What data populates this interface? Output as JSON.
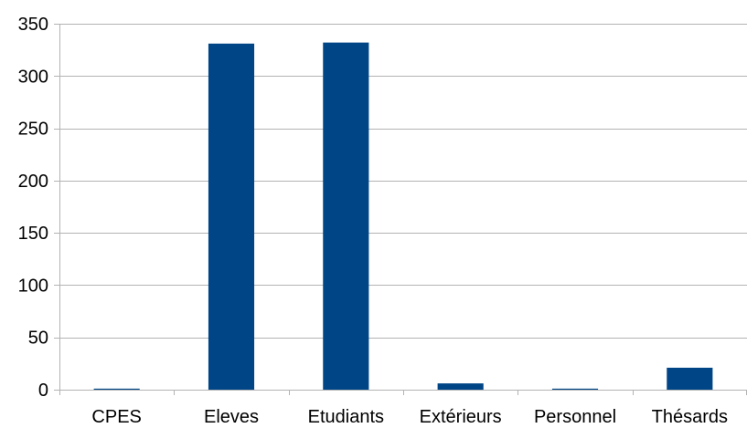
{
  "chart_data": {
    "type": "bar",
    "title": "",
    "xlabel": "",
    "ylabel": "",
    "categories": [
      "CPES",
      "Eleves",
      "Etudiants",
      "Extérieurs",
      "Personnel",
      "Thésards"
    ],
    "values": [
      1,
      331,
      332,
      6,
      1,
      21
    ],
    "ylim": [
      0,
      350
    ],
    "yticks": [
      0,
      50,
      100,
      150,
      200,
      250,
      300,
      350
    ],
    "grid": "horizontal",
    "legend": "none",
    "colors": {
      "bar": "#004586",
      "grid": "#b3b3b3",
      "axis": "#b3b3b3",
      "text": "#000000"
    }
  }
}
